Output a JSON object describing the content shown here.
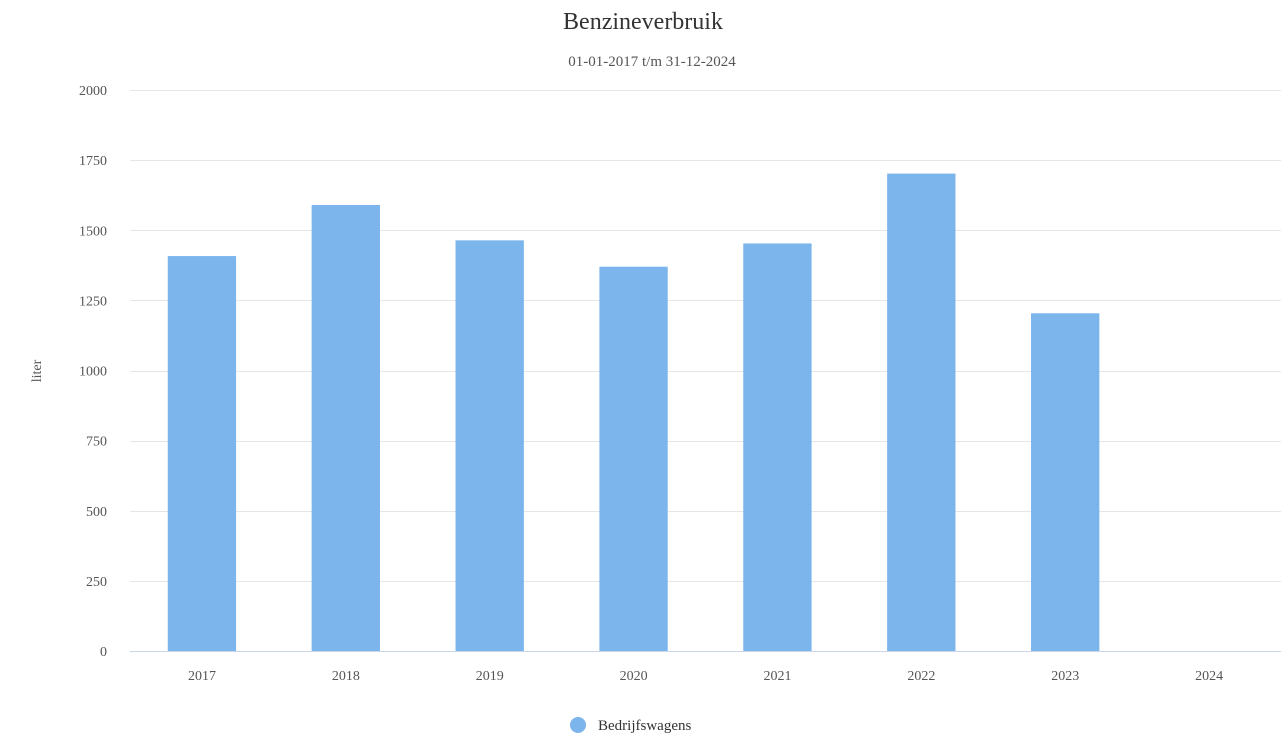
{
  "chart_data": {
    "type": "bar",
    "title": "Benzineverbruik",
    "subtitle": "01-01-2017 t/m 31-12-2024",
    "xlabel": "",
    "ylabel": "liter",
    "categories": [
      "2017",
      "2018",
      "2019",
      "2020",
      "2021",
      "2022",
      "2023",
      "2024"
    ],
    "series": [
      {
        "name": "Bedrijfswagens",
        "color": "#7cb5ec",
        "values": [
          1408,
          1590,
          1464,
          1370,
          1453,
          1702,
          1204,
          0
        ]
      }
    ],
    "ylim": [
      0,
      2000
    ],
    "yticks": [
      "0",
      "250",
      "500",
      "750",
      "1000",
      "1250",
      "1500",
      "1750",
      "2000"
    ],
    "grid": true,
    "legend_position": "bottom-center"
  }
}
